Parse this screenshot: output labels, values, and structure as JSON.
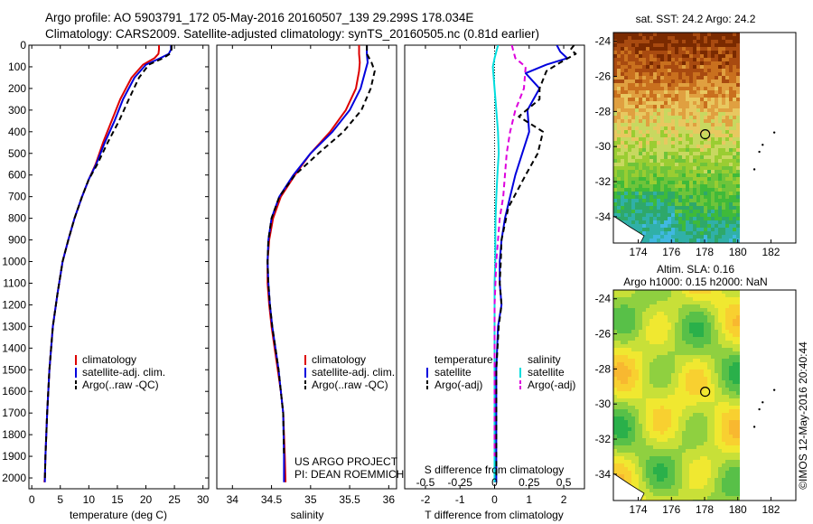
{
  "header": {
    "line1": "Argo profile: AO 5903791_172 05-May-2016 20160507_139 29.299S 178.034E",
    "line2": "Climatology: CARS2009. Satellite-adjusted climatology: synTS_20160505.nc (0.81d earlier)"
  },
  "chart_data": [
    {
      "type": "line",
      "panel": "temperature",
      "xlabel": "temperature (deg C)",
      "ylabel": "",
      "xlim": [
        -0.5,
        31
      ],
      "ylim": [
        2050,
        0
      ],
      "y_inverted": true,
      "xticks": [
        0,
        5,
        10,
        15,
        20,
        25,
        30
      ],
      "yticks": [
        0,
        100,
        200,
        300,
        400,
        500,
        600,
        700,
        800,
        900,
        1000,
        1100,
        1200,
        1300,
        1400,
        1500,
        1600,
        1700,
        1800,
        1900,
        2000
      ],
      "legend": [
        "climatology",
        "satellite-adj. clim.",
        "Argo(..raw -QC)"
      ],
      "legend_placement": "lower-right",
      "series": [
        {
          "name": "climatology",
          "color": "#dd0000",
          "dash": "solid",
          "x": [
            22.3,
            22.3,
            22.2,
            21.5,
            19.5,
            17.5,
            15.5,
            14.0,
            12.5,
            11.2,
            10.0,
            8.8,
            7.5,
            6.4,
            5.4,
            4.5,
            3.7,
            3.1,
            2.7,
            2.4,
            2.3,
            2.2
          ],
          "y": [
            0,
            20,
            40,
            60,
            90,
            150,
            250,
            350,
            450,
            550,
            620,
            700,
            800,
            900,
            1000,
            1150,
            1300,
            1500,
            1700,
            1900,
            2000,
            2020
          ]
        },
        {
          "name": "satellite-adj. clim.",
          "color": "#0000dd",
          "dash": "solid",
          "x": [
            24.4,
            24.4,
            24.0,
            22.5,
            20.0,
            18.0,
            16.0,
            14.5,
            12.8,
            11.3,
            10.0,
            8.8,
            7.5,
            6.4,
            5.4,
            4.5,
            3.7,
            3.1,
            2.7,
            2.4,
            2.3,
            2.3
          ],
          "y": [
            0,
            20,
            40,
            60,
            90,
            150,
            250,
            350,
            450,
            550,
            620,
            700,
            800,
            900,
            1000,
            1150,
            1300,
            1500,
            1700,
            1900,
            2000,
            2020
          ]
        },
        {
          "name": "Argo(..raw -QC)",
          "color": "#000000",
          "dash": "dashed",
          "x": [
            24.5,
            24.5,
            24.2,
            23.0,
            20.5,
            18.8,
            17.0,
            15.3,
            13.3,
            11.5,
            10.0,
            8.8,
            7.5,
            6.4,
            5.4,
            4.5,
            3.7,
            3.1,
            2.7,
            2.4,
            2.3
          ],
          "y": [
            0,
            20,
            40,
            60,
            90,
            150,
            250,
            350,
            450,
            550,
            620,
            700,
            800,
            900,
            1000,
            1150,
            1300,
            1500,
            1700,
            1900,
            2000
          ]
        }
      ]
    },
    {
      "type": "line",
      "panel": "salinity",
      "xlabel": "salinity",
      "xlim": [
        33.8,
        36.1
      ],
      "ylim": [
        2050,
        0
      ],
      "y_inverted": true,
      "xticks": [
        34,
        34.5,
        35,
        35.5,
        36
      ],
      "legend": [
        "climatology",
        "satellite-adj. clim.",
        "Argo(..raw -QC)"
      ],
      "legend_placement": "lower-right",
      "annotations": [
        "US ARGO PROJECT",
        "PI: DEAN ROEMMICH"
      ],
      "series": [
        {
          "name": "climatology",
          "color": "#dd0000",
          "dash": "solid",
          "x": [
            35.62,
            35.62,
            35.63,
            35.62,
            35.58,
            35.45,
            35.25,
            35.0,
            34.8,
            34.62,
            34.52,
            34.47,
            34.45,
            34.45,
            34.47,
            34.5,
            34.54,
            34.58,
            34.62,
            34.65,
            34.67,
            34.68
          ],
          "y": [
            0,
            40,
            80,
            120,
            200,
            300,
            400,
            500,
            600,
            700,
            800,
            900,
            1000,
            1100,
            1200,
            1300,
            1400,
            1500,
            1600,
            1700,
            1900,
            2020
          ]
        },
        {
          "name": "satellite-adj. clim.",
          "color": "#0000dd",
          "dash": "solid",
          "x": [
            35.72,
            35.72,
            35.73,
            35.7,
            35.64,
            35.5,
            35.28,
            35.0,
            34.78,
            34.6,
            34.5,
            34.46,
            34.45,
            34.46,
            34.48,
            34.51,
            34.55,
            34.59,
            34.62,
            34.65,
            34.66,
            34.66
          ],
          "y": [
            0,
            40,
            80,
            120,
            200,
            300,
            400,
            500,
            600,
            700,
            800,
            900,
            1000,
            1100,
            1200,
            1300,
            1400,
            1500,
            1600,
            1700,
            1900,
            2020
          ]
        },
        {
          "name": "Argo(..raw -QC)",
          "color": "#000000",
          "dash": "dashed",
          "x": [
            35.72,
            35.72,
            35.78,
            35.82,
            35.77,
            35.65,
            35.42,
            35.1,
            34.8,
            34.6,
            34.5,
            34.46,
            34.45,
            34.46,
            34.48,
            34.51,
            34.55,
            34.59,
            34.62,
            34.65,
            34.66
          ],
          "y": [
            0,
            40,
            80,
            120,
            200,
            300,
            400,
            500,
            600,
            700,
            800,
            900,
            1000,
            1100,
            1200,
            1300,
            1400,
            1500,
            1600,
            1700,
            1900
          ]
        }
      ]
    },
    {
      "type": "line",
      "panel": "difference",
      "xlabel": "T difference from climatology",
      "xlabel_top": "S difference from climatology",
      "xlim": [
        -2.6,
        2.6
      ],
      "ylim": [
        2050,
        0
      ],
      "y_inverted": true,
      "xticks": [
        -2,
        -1,
        0,
        1,
        2
      ],
      "xticks_s": [
        "-0.5",
        "-0.25",
        "0",
        "0.25",
        "0.5"
      ],
      "legend_groups": [
        {
          "title": "temperature",
          "items": [
            "satellite",
            "Argo(-adj)"
          ]
        },
        {
          "title": "salinity",
          "items": [
            "satellite",
            "Argo(-adj)"
          ]
        }
      ],
      "series": [
        {
          "name": "temperature satellite",
          "color": "#0000dd",
          "dash": "solid",
          "x": [
            1.8,
            1.9,
            2.1,
            1.5,
            0.9,
            1.3,
            0.95,
            1.0,
            0.8,
            0.6,
            0.45,
            0.3,
            0.2,
            0.15,
            0.15,
            0.2,
            0.1,
            0.05,
            0.05,
            0.05,
            0.05,
            0.05
          ],
          "y": [
            0,
            30,
            60,
            90,
            130,
            200,
            300,
            400,
            500,
            600,
            700,
            800,
            900,
            1000,
            1100,
            1200,
            1300,
            1500,
            1700,
            1900,
            2000,
            2020
          ]
        },
        {
          "name": "temperature Argo(-adj)",
          "color": "#000000",
          "dash": "dashed",
          "x": [
            2.3,
            2.2,
            2.35,
            1.9,
            1.5,
            1.3,
            1.3,
            0.7,
            1.4,
            1.25,
            0.9,
            0.4,
            0.2,
            0.18,
            0.15,
            0.2,
            0.12,
            0.05,
            0.05,
            0.05,
            0.05
          ],
          "y": [
            0,
            20,
            40,
            80,
            120,
            200,
            250,
            330,
            400,
            500,
            600,
            750,
            900,
            1000,
            1100,
            1200,
            1300,
            1500,
            1700,
            1900,
            2000
          ]
        },
        {
          "name": "salinity satellite",
          "color": "#00dddd",
          "dash": "solid",
          "x": [
            0.1,
            0.05,
            0.0,
            -0.05,
            0.0,
            0.05,
            0.1,
            0.12,
            0.08,
            0.05,
            0.03,
            0.02,
            0.02,
            0.0,
            0.0,
            0.0,
            0.0,
            0.0,
            0.0,
            0.0
          ],
          "y": [
            0,
            30,
            60,
            100,
            200,
            300,
            400,
            500,
            600,
            700,
            800,
            900,
            1000,
            1100,
            1300,
            1500,
            1700,
            1900,
            2000,
            2020
          ]
        },
        {
          "name": "salinity Argo(-adj)",
          "color": "#dd00dd",
          "dash": "dashed",
          "x": [
            0.5,
            0.55,
            0.6,
            0.9,
            0.85,
            0.6,
            0.45,
            0.35,
            0.3,
            0.25,
            0.15,
            0.1,
            0.05,
            0.0,
            0.0,
            0.0
          ],
          "y": [
            0,
            30,
            60,
            100,
            200,
            300,
            400,
            500,
            600,
            700,
            800,
            900,
            1000,
            1200,
            1500,
            1900
          ]
        }
      ]
    },
    {
      "type": "heatmap",
      "panel": "map-sst",
      "title": "sat. SST: 24.2 Argo: 24.2",
      "xticks": [
        174,
        176,
        178,
        180,
        182
      ],
      "yticks": [
        -24,
        -26,
        -28,
        -30,
        -32,
        -34
      ],
      "xlim": [
        172.5,
        183.5
      ],
      "ylim": [
        -35.5,
        -23.5
      ],
      "float_location": {
        "lon": 178.034,
        "lat": -29.299
      }
    },
    {
      "type": "heatmap",
      "panel": "map-sla",
      "title": "Altim. SLA: 0.16",
      "subtitle": "Argo h1000: 0.15 h2000: NaN",
      "xticks": [
        174,
        176,
        178,
        180,
        182
      ],
      "yticks": [
        -24,
        -26,
        -28,
        -30,
        -32,
        -34
      ],
      "xlim": [
        172.5,
        183.5
      ],
      "ylim": [
        -35.5,
        -23.5
      ],
      "float_location": {
        "lon": 178.034,
        "lat": -29.299
      }
    }
  ],
  "watermark": "©IMOS 12-May-2016 20:40:44"
}
